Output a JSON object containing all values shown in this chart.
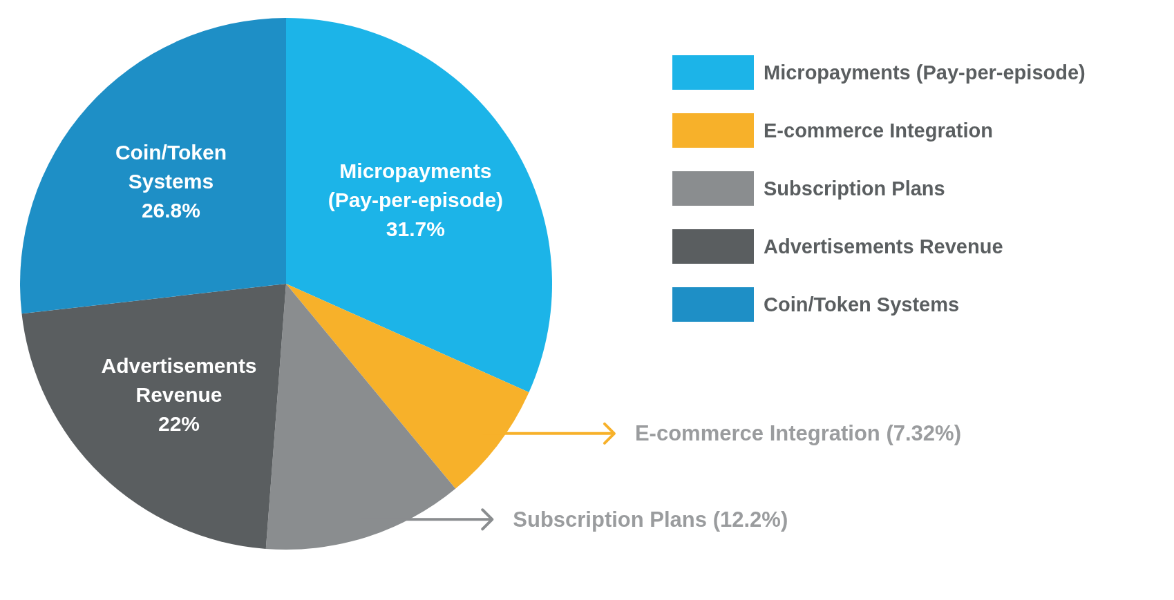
{
  "chart_data": {
    "type": "pie",
    "categories": [
      "Micropayments (Pay-per-episode)",
      "E-commerce Integration",
      "Subscription Plans",
      "Advertisements Revenue",
      "Coin/Token Systems"
    ],
    "values": [
      31.7,
      7.32,
      12.2,
      22,
      26.8
    ],
    "colors": [
      "#1cb4e8",
      "#f7b12a",
      "#8a8d8f",
      "#5a5e60",
      "#1e8fc6"
    ],
    "value_labels": [
      "31.7%",
      "(7.32%)",
      "(12.2%)",
      "22%",
      "26.8%"
    ],
    "legend": "right"
  }
}
